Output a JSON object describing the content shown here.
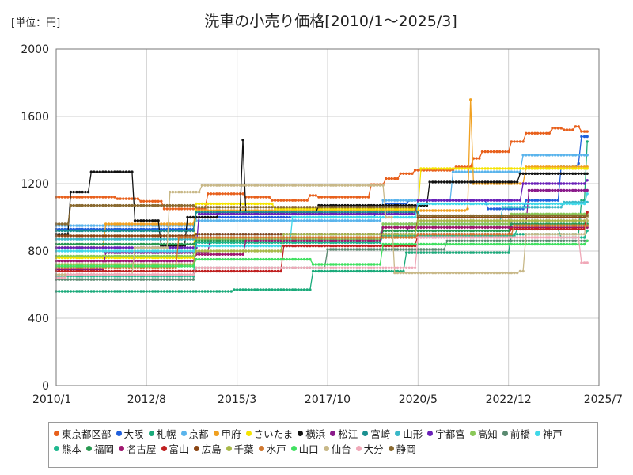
{
  "chart_data": {
    "type": "line",
    "title": "洗車の小売り価格[2010/1～2025/3]",
    "unit_label": "[単位：円]",
    "xlabel": "",
    "ylabel": "",
    "xlim": [
      "2010-01",
      "2025-07"
    ],
    "ylim": [
      0,
      2000
    ],
    "x_ticks": [
      "2010/1",
      "2012/8",
      "2015/3",
      "2017/10",
      "2020/5",
      "2022/12",
      "2025/7"
    ],
    "y_ticks": [
      0,
      400,
      800,
      1200,
      1600,
      2000
    ],
    "grid": true,
    "legend_position": "bottom",
    "series": [
      {
        "name": "東京都区部",
        "color": "#e8601c",
        "points": [
          [
            "2010-01",
            1120
          ],
          [
            "2011-10",
            1110
          ],
          [
            "2012-06",
            1095
          ],
          [
            "2013-02",
            1050
          ],
          [
            "2014-01",
            1050
          ],
          [
            "2014-05",
            1140
          ],
          [
            "2015-06",
            1120
          ],
          [
            "2016-03",
            1100
          ],
          [
            "2017-04",
            1130
          ],
          [
            "2017-07",
            1120
          ],
          [
            "2019-01",
            1195
          ],
          [
            "2019-06",
            1230
          ],
          [
            "2019-11",
            1260
          ],
          [
            "2020-04",
            1280
          ],
          [
            "2021-06",
            1300
          ],
          [
            "2021-12",
            1350
          ],
          [
            "2022-03",
            1390
          ],
          [
            "2023-01",
            1450
          ],
          [
            "2023-06",
            1500
          ],
          [
            "2024-03",
            1530
          ],
          [
            "2024-07",
            1520
          ],
          [
            "2024-11",
            1540
          ],
          [
            "2025-01",
            1510
          ],
          [
            "2025-03",
            1510
          ]
        ]
      },
      {
        "name": "大阪",
        "color": "#1f5fdc",
        "points": [
          [
            "2010-01",
            930
          ],
          [
            "2013-06",
            930
          ],
          [
            "2014-01",
            1000
          ],
          [
            "2017-06",
            1000
          ],
          [
            "2019-03",
            1060
          ],
          [
            "2019-06",
            1080
          ],
          [
            "2020-02",
            1100
          ],
          [
            "2022-05",
            1050
          ],
          [
            "2023-06",
            1100
          ],
          [
            "2024-06",
            1300
          ],
          [
            "2024-12",
            1320
          ],
          [
            "2025-01",
            1480
          ],
          [
            "2025-03",
            1480
          ]
        ]
      },
      {
        "name": "札幌",
        "color": "#1aaa7a",
        "points": [
          [
            "2010-01",
            560
          ],
          [
            "2015-01",
            560
          ],
          [
            "2015-02",
            570
          ],
          [
            "2016-09",
            570
          ],
          [
            "2017-04",
            570
          ],
          [
            "2017-05",
            680
          ],
          [
            "2019-12",
            680
          ],
          [
            "2020-01",
            790
          ],
          [
            "2022-12",
            790
          ],
          [
            "2023-01",
            900
          ],
          [
            "2024-12",
            900
          ],
          [
            "2025-01",
            1100
          ],
          [
            "2025-03",
            1450
          ]
        ]
      },
      {
        "name": "京都",
        "color": "#5ab4ec",
        "points": [
          [
            "2010-01",
            950
          ],
          [
            "2013-06",
            950
          ],
          [
            "2014-01",
            980
          ],
          [
            "2019-04",
            980
          ],
          [
            "2019-05",
            1100
          ],
          [
            "2021-04",
            1100
          ],
          [
            "2021-05",
            1270
          ],
          [
            "2023-04",
            1270
          ],
          [
            "2023-05",
            1370
          ],
          [
            "2025-03",
            1370
          ]
        ]
      },
      {
        "name": "甲府",
        "color": "#f0a020",
        "points": [
          [
            "2010-01",
            820
          ],
          [
            "2011-06",
            960
          ],
          [
            "2013-06",
            960
          ],
          [
            "2014-01",
            1040
          ],
          [
            "2021-03",
            1040
          ],
          [
            "2021-10",
            1050
          ],
          [
            "2021-11",
            1700
          ],
          [
            "2021-12",
            1200
          ],
          [
            "2023-06",
            1300
          ],
          [
            "2025-03",
            1300
          ]
        ]
      },
      {
        "name": "さいたま",
        "color": "#f5e400",
        "points": [
          [
            "2010-01",
            760
          ],
          [
            "2013-06",
            760
          ],
          [
            "2014-01",
            1080
          ],
          [
            "2016-03",
            1080
          ],
          [
            "2016-04",
            1050
          ],
          [
            "2020-05",
            1050
          ],
          [
            "2020-06",
            1290
          ],
          [
            "2025-03",
            1290
          ]
        ]
      },
      {
        "name": "横浜",
        "color": "#111111",
        "points": [
          [
            "2010-01",
            900
          ],
          [
            "2010-06",
            1150
          ],
          [
            "2011-01",
            1270
          ],
          [
            "2012-02",
            1270
          ],
          [
            "2012-04",
            980
          ],
          [
            "2012-10",
            980
          ],
          [
            "2013-01",
            830
          ],
          [
            "2013-08",
            830
          ],
          [
            "2013-10",
            1000
          ],
          [
            "2014-08",
            1000
          ],
          [
            "2014-09",
            1030
          ],
          [
            "2015-04",
            1030
          ],
          [
            "2015-05",
            1460
          ],
          [
            "2015-06",
            1030
          ],
          [
            "2017-06",
            1030
          ],
          [
            "2017-07",
            1070
          ],
          [
            "2020-08",
            1070
          ],
          [
            "2020-09",
            1210
          ],
          [
            "2023-03",
            1210
          ],
          [
            "2023-04",
            1260
          ],
          [
            "2025-03",
            1260
          ]
        ]
      },
      {
        "name": "松江",
        "color": "#8b1a8b",
        "points": [
          [
            "2010-01",
            690
          ],
          [
            "2011-06",
            790
          ],
          [
            "2014-01",
            790
          ],
          [
            "2014-06",
            900
          ],
          [
            "2020-01",
            900
          ],
          [
            "2020-02",
            960
          ],
          [
            "2023-06",
            960
          ],
          [
            "2023-07",
            1160
          ],
          [
            "2025-03",
            1160
          ]
        ]
      },
      {
        "name": "宮崎",
        "color": "#1a9090",
        "points": [
          [
            "2010-01",
            920
          ],
          [
            "2013-06",
            920
          ],
          [
            "2014-01",
            1030
          ],
          [
            "2020-05",
            1030
          ],
          [
            "2020-06",
            1000
          ],
          [
            "2025-03",
            1000
          ]
        ]
      },
      {
        "name": "山形",
        "color": "#3ab8c8",
        "points": [
          [
            "2010-01",
            870
          ],
          [
            "2013-12",
            870
          ],
          [
            "2014-01",
            900
          ],
          [
            "2019-04",
            900
          ],
          [
            "2019-05",
            960
          ],
          [
            "2022-09",
            960
          ],
          [
            "2022-10",
            1060
          ],
          [
            "2024-06",
            1060
          ],
          [
            "2024-07",
            1090
          ],
          [
            "2025-03",
            1090
          ]
        ]
      },
      {
        "name": "宇都宮",
        "color": "#6a20b8",
        "points": [
          [
            "2010-01",
            820
          ],
          [
            "2014-01",
            820
          ],
          [
            "2014-02",
            1020
          ],
          [
            "2020-04",
            1020
          ],
          [
            "2020-05",
            1100
          ],
          [
            "2023-04",
            1100
          ],
          [
            "2023-05",
            1200
          ],
          [
            "2025-03",
            1220
          ]
        ]
      },
      {
        "name": "高知",
        "color": "#8ac858",
        "points": [
          [
            "2010-01",
            770
          ],
          [
            "2013-12",
            770
          ],
          [
            "2014-01",
            870
          ],
          [
            "2019-04",
            870
          ],
          [
            "2019-05",
            960
          ],
          [
            "2022-12",
            960
          ],
          [
            "2023-01",
            1020
          ],
          [
            "2025-03",
            1020
          ]
        ]
      },
      {
        "name": "前橋",
        "color": "#5a8a70",
        "points": [
          [
            "2010-01",
            630
          ],
          [
            "2013-12",
            630
          ],
          [
            "2014-01",
            700
          ],
          [
            "2017-09",
            700
          ],
          [
            "2017-10",
            810
          ],
          [
            "2021-02",
            810
          ],
          [
            "2021-03",
            860
          ],
          [
            "2025-03",
            860
          ]
        ]
      },
      {
        "name": "神戸",
        "color": "#40d8e8",
        "points": [
          [
            "2010-01",
            800
          ],
          [
            "2013-12",
            800
          ],
          [
            "2014-01",
            830
          ],
          [
            "2016-09",
            830
          ],
          [
            "2016-10",
            1000
          ],
          [
            "2020-04",
            1000
          ],
          [
            "2020-05",
            1080
          ],
          [
            "2025-03",
            1140
          ]
        ]
      },
      {
        "name": "熊本",
        "color": "#20b890",
        "points": [
          [
            "2010-01",
            650
          ],
          [
            "2013-12",
            650
          ],
          [
            "2014-01",
            850
          ],
          [
            "2019-04",
            850
          ],
          [
            "2019-05",
            890
          ],
          [
            "2023-02",
            890
          ],
          [
            "2023-03",
            930
          ],
          [
            "2024-06",
            880
          ],
          [
            "2025-03",
            920
          ]
        ]
      },
      {
        "name": "福岡",
        "color": "#289850",
        "points": [
          [
            "2010-01",
            840
          ],
          [
            "2013-12",
            840
          ],
          [
            "2014-01",
            860
          ],
          [
            "2019-04",
            860
          ],
          [
            "2019-05",
            920
          ],
          [
            "2022-12",
            920
          ],
          [
            "2023-01",
            960
          ],
          [
            "2025-03",
            960
          ]
        ]
      },
      {
        "name": "名古屋",
        "color": "#a01870",
        "points": [
          [
            "2010-01",
            740
          ],
          [
            "2013-12",
            740
          ],
          [
            "2014-01",
            780
          ],
          [
            "2015-01",
            780
          ],
          [
            "2015-06",
            860
          ],
          [
            "2019-04",
            860
          ],
          [
            "2019-05",
            940
          ],
          [
            "2025-03",
            940
          ]
        ]
      },
      {
        "name": "富山",
        "color": "#c02020",
        "points": [
          [
            "2010-01",
            680
          ],
          [
            "2013-12",
            680
          ],
          [
            "2014-01",
            680
          ],
          [
            "2016-06",
            680
          ],
          [
            "2016-07",
            830
          ],
          [
            "2020-04",
            830
          ],
          [
            "2020-05",
            900
          ],
          [
            "2022-12",
            900
          ],
          [
            "2023-01",
            930
          ],
          [
            "2025-03",
            1030
          ]
        ]
      },
      {
        "name": "広島",
        "color": "#8b4513",
        "points": [
          [
            "2010-01",
            890
          ],
          [
            "2013-12",
            890
          ],
          [
            "2014-01",
            900
          ],
          [
            "2020-04",
            900
          ],
          [
            "2020-05",
            1000
          ],
          [
            "2025-03",
            1000
          ]
        ]
      },
      {
        "name": "千葉",
        "color": "#a8b848",
        "points": [
          [
            "2010-01",
            720
          ],
          [
            "2013-12",
            720
          ],
          [
            "2014-01",
            800
          ],
          [
            "2016-06",
            800
          ],
          [
            "2016-07",
            900
          ],
          [
            "2020-04",
            900
          ],
          [
            "2020-05",
            980
          ],
          [
            "2025-03",
            980
          ]
        ]
      },
      {
        "name": "水戸",
        "color": "#d07830",
        "points": [
          [
            "2010-01",
            700
          ],
          [
            "2013-06",
            700
          ],
          [
            "2013-07",
            880
          ],
          [
            "2020-04",
            880
          ],
          [
            "2020-05",
            900
          ],
          [
            "2023-01",
            900
          ],
          [
            "2023-02",
            950
          ],
          [
            "2025-03",
            950
          ]
        ]
      },
      {
        "name": "山口",
        "color": "#40e060",
        "points": [
          [
            "2010-01",
            710
          ],
          [
            "2013-12",
            710
          ],
          [
            "2014-01",
            750
          ],
          [
            "2017-04",
            750
          ],
          [
            "2017-05",
            720
          ],
          [
            "2019-04",
            720
          ],
          [
            "2019-05",
            840
          ],
          [
            "2025-03",
            860
          ]
        ]
      },
      {
        "name": "仙台",
        "color": "#c8b888",
        "points": [
          [
            "2010-01",
            660
          ],
          [
            "2012-03",
            660
          ],
          [
            "2012-04",
            820
          ],
          [
            "2013-01",
            820
          ],
          [
            "2013-04",
            1150
          ],
          [
            "2014-01",
            1150
          ],
          [
            "2014-03",
            1190
          ],
          [
            "2019-04",
            1190
          ],
          [
            "2019-05",
            1190
          ],
          [
            "2019-06",
            1000
          ],
          [
            "2019-09",
            670
          ],
          [
            "2022-12",
            670
          ],
          [
            "2023-04",
            680
          ],
          [
            "2023-06",
            900
          ],
          [
            "2025-03",
            1000
          ]
        ]
      },
      {
        "name": "大分",
        "color": "#f0a8b8",
        "points": [
          [
            "2010-01",
            640
          ],
          [
            "2010-05",
            660
          ],
          [
            "2013-12",
            660
          ],
          [
            "2014-01",
            700
          ],
          [
            "2020-04",
            700
          ],
          [
            "2020-05",
            880
          ],
          [
            "2024-12",
            880
          ],
          [
            "2025-01",
            730
          ],
          [
            "2025-03",
            730
          ]
        ]
      },
      {
        "name": "静岡",
        "color": "#8a6a30",
        "points": [
          [
            "2010-01",
            960
          ],
          [
            "2010-06",
            1070
          ],
          [
            "2013-06",
            1070
          ],
          [
            "2014-01",
            1060
          ],
          [
            "2020-04",
            1060
          ],
          [
            "2020-05",
            1010
          ],
          [
            "2025-03",
            1010
          ]
        ]
      }
    ]
  }
}
